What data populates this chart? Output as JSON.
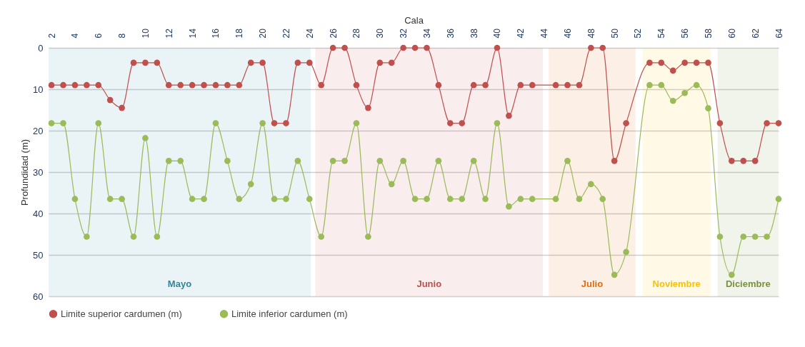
{
  "chart_data": {
    "type": "line",
    "xlabel": "Cala",
    "ylabel": "Profundidad (m)",
    "x": [
      2,
      3,
      4,
      5,
      6,
      7,
      8,
      9,
      10,
      11,
      12,
      13,
      14,
      15,
      16,
      17,
      18,
      19,
      20,
      21,
      22,
      23,
      24,
      25,
      26,
      27,
      28,
      29,
      30,
      31,
      32,
      33,
      34,
      35,
      36,
      37,
      38,
      39,
      40,
      41,
      42,
      43,
      45,
      46,
      47,
      48,
      49,
      50,
      51,
      53,
      54,
      55,
      56,
      57,
      58,
      59,
      60,
      61,
      62,
      63,
      64
    ],
    "xlim": [
      1.75,
      64
    ],
    "xticks": [
      2,
      4,
      6,
      8,
      10,
      12,
      14,
      16,
      18,
      20,
      22,
      24,
      26,
      28,
      30,
      32,
      34,
      36,
      38,
      40,
      42,
      44,
      46,
      48,
      50,
      52,
      54,
      56,
      58,
      60,
      62,
      64
    ],
    "ylim": [
      60,
      0
    ],
    "yticks": [
      0,
      10,
      20,
      30,
      40,
      50,
      60
    ],
    "series": [
      {
        "name": "Limite superior cardumen (m)",
        "color": "#c0504d",
        "values": [
          9,
          9,
          9,
          9,
          9,
          12.6,
          14.5,
          3.6,
          3.6,
          3.6,
          9,
          9,
          9,
          9,
          9,
          9,
          9,
          3.6,
          3.6,
          18.2,
          18.2,
          3.6,
          3.6,
          9,
          0,
          0,
          9,
          14.5,
          3.6,
          3.6,
          0,
          0,
          0,
          9,
          18.2,
          18.2,
          9,
          9,
          0,
          16.4,
          9,
          9,
          9,
          9,
          9,
          0,
          0,
          27.3,
          18.2,
          3.6,
          3.6,
          5.5,
          3.6,
          3.6,
          3.6,
          18.2,
          27.3,
          27.3,
          27.3,
          18.2,
          18.2
        ]
      },
      {
        "name": "Limite inferior cardumen (m)",
        "color": "#9bbb59",
        "values": [
          18.2,
          18.2,
          36.5,
          45.6,
          18.2,
          36.5,
          36.5,
          45.6,
          21.8,
          45.6,
          27.3,
          27.3,
          36.5,
          36.5,
          18.2,
          27.3,
          36.5,
          32.9,
          18.2,
          36.5,
          36.5,
          27.3,
          36.5,
          45.6,
          27.3,
          27.3,
          18.2,
          45.6,
          27.3,
          32.9,
          27.3,
          36.5,
          36.5,
          27.3,
          36.5,
          36.5,
          27.3,
          36.5,
          18.2,
          38.3,
          36.5,
          36.5,
          36.5,
          27.3,
          36.5,
          32.9,
          36.5,
          54.8,
          49.3,
          9,
          9,
          12.8,
          10.9,
          9,
          14.6,
          45.6,
          54.8,
          45.6,
          45.6,
          45.6,
          36.5
        ]
      }
    ],
    "bands": [
      {
        "axis": "x",
        "from": 1.75,
        "to": 24.1,
        "label": "Mayo",
        "color": "#31859c"
      },
      {
        "axis": "x",
        "from": 24.5,
        "to": 43.9,
        "label": "Junio",
        "color": "#c0504d"
      },
      {
        "axis": "x",
        "from": 44.4,
        "to": 51.8,
        "label": "Julio",
        "color": "#e46c0a"
      },
      {
        "axis": "x",
        "from": 52.4,
        "to": 58.2,
        "label": "Noviembre",
        "color": "#ffc000"
      },
      {
        "axis": "x",
        "from": 58.8,
        "to": 64,
        "label": "Diciembre",
        "color": "#77933c"
      }
    ],
    "grid": "y",
    "legend": "bottom",
    "marker": "circle",
    "line_style": "solid"
  }
}
